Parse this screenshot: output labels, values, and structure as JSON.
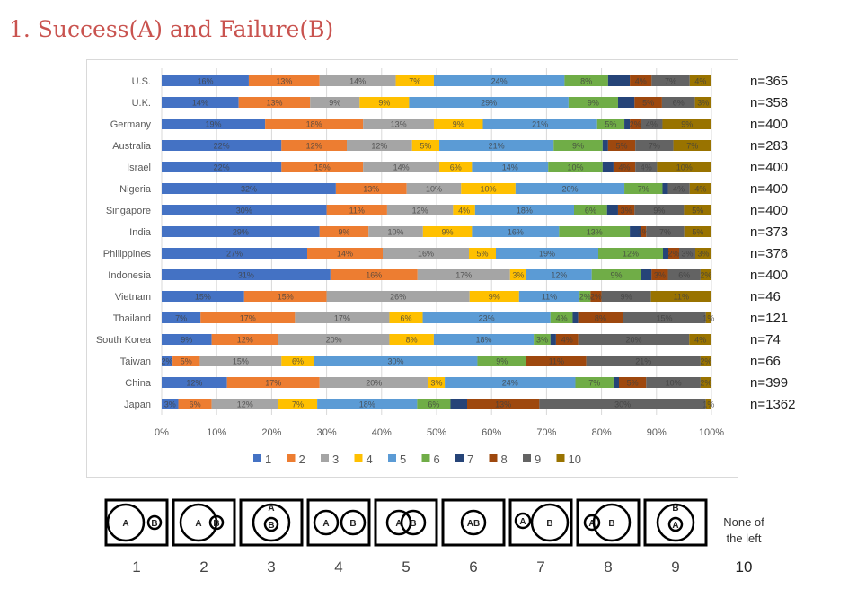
{
  "title": "1. Success(A) and Failure(B)",
  "chart_data": {
    "type": "bar",
    "orientation": "horizontal",
    "stacked": true,
    "percent": true,
    "xlim": [
      0,
      100
    ],
    "xticks": [
      "0%",
      "10%",
      "20%",
      "30%",
      "40%",
      "50%",
      "60%",
      "70%",
      "80%",
      "90%",
      "100%"
    ],
    "legend_position": "bottom",
    "series_names": [
      "1",
      "2",
      "3",
      "4",
      "5",
      "6",
      "7",
      "8",
      "9",
      "10"
    ],
    "colors": [
      "#4472C4",
      "#ED7D31",
      "#A5A5A5",
      "#FFC000",
      "#5B9BD5",
      "#70AD47",
      "#264478",
      "#9E480E",
      "#636363",
      "#997300"
    ],
    "rows": [
      {
        "country": "U.S.",
        "n": "n=365",
        "values": [
          16,
          13,
          14,
          7,
          24,
          8,
          4,
          4,
          7,
          4
        ]
      },
      {
        "country": "U.K.",
        "n": "n=358",
        "values": [
          14,
          13,
          9,
          9,
          29,
          9,
          3,
          5,
          6,
          3
        ]
      },
      {
        "country": "Germany",
        "n": "n=400",
        "values": [
          19,
          18,
          13,
          9,
          21,
          5,
          1,
          2,
          4,
          9
        ]
      },
      {
        "country": "Australia",
        "n": "n=283",
        "values": [
          22,
          12,
          12,
          5,
          21,
          9,
          1,
          5,
          7,
          7
        ]
      },
      {
        "country": "Israel",
        "n": "n=400",
        "values": [
          22,
          15,
          14,
          6,
          14,
          10,
          2,
          4,
          4,
          10
        ]
      },
      {
        "country": "Nigeria",
        "n": "n=400",
        "values": [
          32,
          13,
          10,
          10,
          20,
          7,
          1,
          0,
          4,
          4
        ]
      },
      {
        "country": "Singapore",
        "n": "n=400",
        "values": [
          30,
          11,
          12,
          4,
          18,
          6,
          2,
          3,
          9,
          5
        ]
      },
      {
        "country": "India",
        "n": "n=373",
        "values": [
          29,
          9,
          10,
          9,
          16,
          13,
          2,
          1,
          7,
          5
        ]
      },
      {
        "country": "Philippines",
        "n": "n=376",
        "values": [
          27,
          14,
          16,
          5,
          19,
          12,
          1,
          2,
          3,
          3
        ]
      },
      {
        "country": "Indonesia",
        "n": "n=400",
        "values": [
          31,
          16,
          17,
          3,
          12,
          9,
          2,
          3,
          6,
          2
        ]
      },
      {
        "country": "Vietnam",
        "n": "n=46",
        "values": [
          15,
          15,
          26,
          9,
          11,
          2,
          0,
          2,
          9,
          11
        ]
      },
      {
        "country": "Thailand",
        "n": "n=121",
        "values": [
          7,
          17,
          17,
          6,
          23,
          4,
          1,
          8,
          15,
          1
        ]
      },
      {
        "country": "South Korea",
        "n": "n=74",
        "values": [
          9,
          12,
          20,
          8,
          18,
          3,
          1,
          4,
          20,
          4
        ]
      },
      {
        "country": "Taiwan",
        "n": "n=66",
        "values": [
          2,
          5,
          15,
          6,
          30,
          9,
          0,
          11,
          21,
          2
        ]
      },
      {
        "country": "China",
        "n": "n=399",
        "values": [
          12,
          17,
          20,
          3,
          24,
          7,
          1,
          5,
          10,
          2
        ]
      },
      {
        "country": "Japan",
        "n": "n=1362",
        "values": [
          3,
          6,
          12,
          7,
          18,
          6,
          3,
          13,
          30,
          1
        ]
      }
    ]
  },
  "diagrams": {
    "numbers": [
      "1",
      "2",
      "3",
      "4",
      "5",
      "6",
      "7",
      "8",
      "9",
      "10"
    ],
    "label_a": "A",
    "label_b": "B",
    "label_ab": "AB",
    "none_line1": "None of",
    "none_line2": "the left"
  }
}
